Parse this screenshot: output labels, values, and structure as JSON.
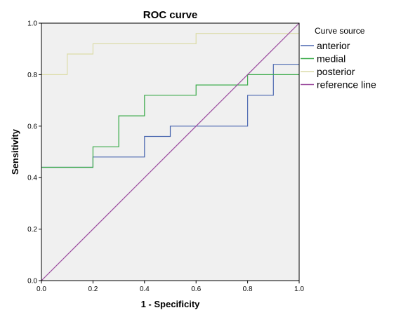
{
  "chart_data": {
    "type": "line",
    "title": "ROC curve",
    "xlabel": "1 - Specificity",
    "ylabel": "Sensitivity",
    "xlim": [
      0,
      1
    ],
    "ylim": [
      0,
      1
    ],
    "xticks": [
      "0.0",
      "0.2",
      "0.4",
      "0.6",
      "0.8",
      "1.0"
    ],
    "yticks": [
      "0.0",
      "0.2",
      "0.4",
      "0.6",
      "0.8",
      "1.0"
    ],
    "grid": false,
    "legend": {
      "title": "Curve source",
      "placement": "top-right outside"
    },
    "series": [
      {
        "name": "anterior",
        "color": "#4a67b0",
        "step": true,
        "points": [
          [
            0,
            0.44
          ],
          [
            0.2,
            0.44
          ],
          [
            0.2,
            0.48
          ],
          [
            0.4,
            0.48
          ],
          [
            0.4,
            0.56
          ],
          [
            0.5,
            0.56
          ],
          [
            0.5,
            0.6
          ],
          [
            0.8,
            0.6
          ],
          [
            0.8,
            0.72
          ],
          [
            0.9,
            0.72
          ],
          [
            0.9,
            0.84
          ],
          [
            1.0,
            0.84
          ]
        ]
      },
      {
        "name": "medial",
        "color": "#3cab4b",
        "step": true,
        "points": [
          [
            0,
            0.44
          ],
          [
            0.2,
            0.44
          ],
          [
            0.2,
            0.52
          ],
          [
            0.3,
            0.52
          ],
          [
            0.3,
            0.64
          ],
          [
            0.4,
            0.64
          ],
          [
            0.4,
            0.72
          ],
          [
            0.6,
            0.72
          ],
          [
            0.6,
            0.76
          ],
          [
            0.8,
            0.76
          ],
          [
            0.8,
            0.8
          ],
          [
            1.0,
            0.8
          ]
        ]
      },
      {
        "name": "posterior",
        "color": "#dcdca8",
        "step": true,
        "points": [
          [
            0,
            0.8
          ],
          [
            0.1,
            0.8
          ],
          [
            0.1,
            0.88
          ],
          [
            0.2,
            0.88
          ],
          [
            0.2,
            0.92
          ],
          [
            0.6,
            0.92
          ],
          [
            0.6,
            0.96
          ],
          [
            1.0,
            0.96
          ]
        ]
      },
      {
        "name": "reference line",
        "color": "#9a4a9e",
        "step": false,
        "points": [
          [
            0,
            0
          ],
          [
            1,
            1
          ]
        ]
      }
    ]
  }
}
